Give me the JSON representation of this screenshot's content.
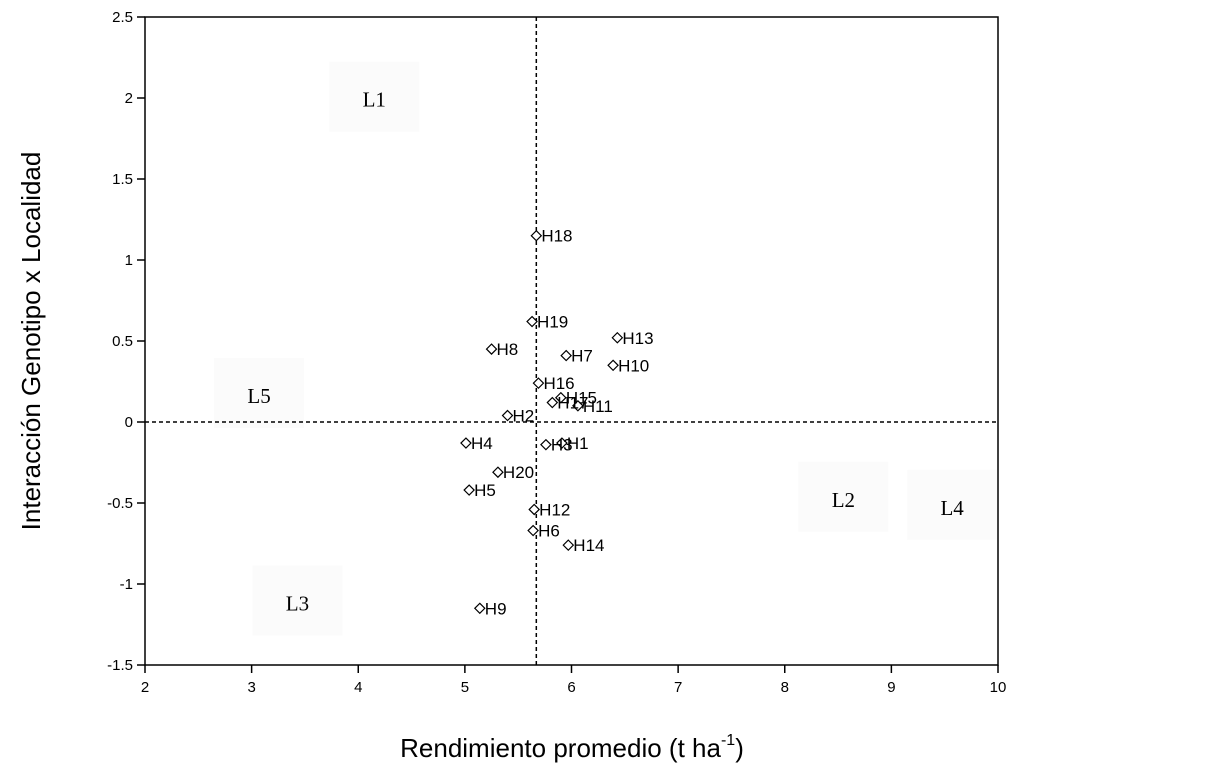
{
  "chart_data": {
    "type": "scatter",
    "xlabel": "Rendimiento promedio (t ha",
    "xlabel_sup": "-1",
    "xlabel_close": ")",
    "ylabel": "Interacción Genotipo x Localidad",
    "xlim": [
      2,
      10
    ],
    "ylim": [
      -1.5,
      2.5
    ],
    "x_ticks": [
      2,
      3,
      4,
      5,
      6,
      7,
      8,
      9,
      10
    ],
    "x_tick_labels": [
      "2",
      "3",
      "4",
      "5",
      "6",
      "7",
      "8",
      "9",
      "10"
    ],
    "y_ticks": [
      2.5,
      2,
      1.5,
      1,
      0.5,
      0,
      -0.5,
      -1,
      -1.5
    ],
    "y_tick_labels": [
      "2.5",
      "2",
      "1.5",
      "1",
      "0.5",
      "0",
      "-0.5",
      "-1",
      "-1.5"
    ],
    "grid": false,
    "reference_lines": {
      "x_mean": 5.67,
      "y_zero": 0
    },
    "points": [
      {
        "label": "H1",
        "x": 5.91,
        "y": -0.13
      },
      {
        "label": "H2",
        "x": 5.4,
        "y": 0.04
      },
      {
        "label": "H3",
        "x": 5.76,
        "y": -0.14
      },
      {
        "label": "H4",
        "x": 5.01,
        "y": -0.13
      },
      {
        "label": "H5",
        "x": 5.04,
        "y": -0.42
      },
      {
        "label": "H6",
        "x": 5.64,
        "y": -0.67
      },
      {
        "label": "H7",
        "x": 5.95,
        "y": 0.41
      },
      {
        "label": "H8",
        "x": 5.25,
        "y": 0.45
      },
      {
        "label": "H9",
        "x": 5.14,
        "y": -1.15
      },
      {
        "label": "H10",
        "x": 6.39,
        "y": 0.35
      },
      {
        "label": "H11",
        "x": 6.06,
        "y": 0.1
      },
      {
        "label": "H12",
        "x": 5.65,
        "y": -0.54
      },
      {
        "label": "H13",
        "x": 6.43,
        "y": 0.52
      },
      {
        "label": "H14",
        "x": 5.97,
        "y": -0.76
      },
      {
        "label": "H15",
        "x": 5.9,
        "y": 0.15
      },
      {
        "label": "H16",
        "x": 5.69,
        "y": 0.24
      },
      {
        "label": "H17",
        "x": 5.82,
        "y": 0.12
      },
      {
        "label": "H18",
        "x": 5.67,
        "y": 1.15
      },
      {
        "label": "H19",
        "x": 5.63,
        "y": 0.62
      },
      {
        "label": "H20",
        "x": 5.31,
        "y": -0.31
      }
    ],
    "locality_labels": [
      {
        "label": "L1",
        "x": 4.15,
        "y": 1.99
      },
      {
        "label": "L2",
        "x": 8.55,
        "y": -0.48
      },
      {
        "label": "L3",
        "x": 3.43,
        "y": -1.12
      },
      {
        "label": "L4",
        "x": 9.57,
        "y": -0.53
      },
      {
        "label": "L5",
        "x": 3.07,
        "y": 0.16
      }
    ]
  }
}
